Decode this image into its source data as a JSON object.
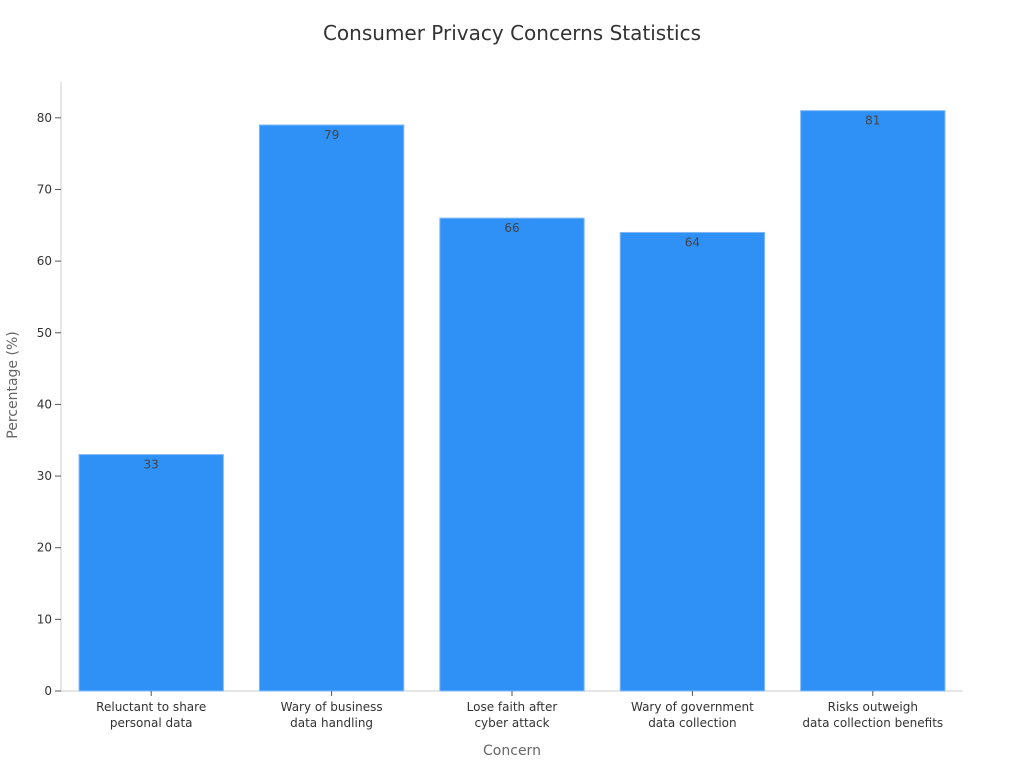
{
  "chart_data": {
    "type": "bar",
    "title": "Consumer Privacy Concerns Statistics",
    "xlabel": "Concern",
    "ylabel": "Percentage (%)",
    "categories": [
      [
        "Reluctant to share",
        "personal data"
      ],
      [
        "Wary of business",
        "data handling"
      ],
      [
        "Lose faith after",
        "cyber attack"
      ],
      [
        "Wary of government",
        "data collection"
      ],
      [
        "Risks outweigh",
        "data collection benefits"
      ]
    ],
    "values": [
      33,
      79,
      66,
      64,
      81
    ],
    "ylim": [
      0,
      85
    ],
    "yticks": [
      0,
      10,
      20,
      30,
      40,
      50,
      60,
      70,
      80
    ],
    "grid": false,
    "legend": "none",
    "colors": {
      "bar": "#2f91f6",
      "bar_edge": "#7fb9f8"
    }
  }
}
